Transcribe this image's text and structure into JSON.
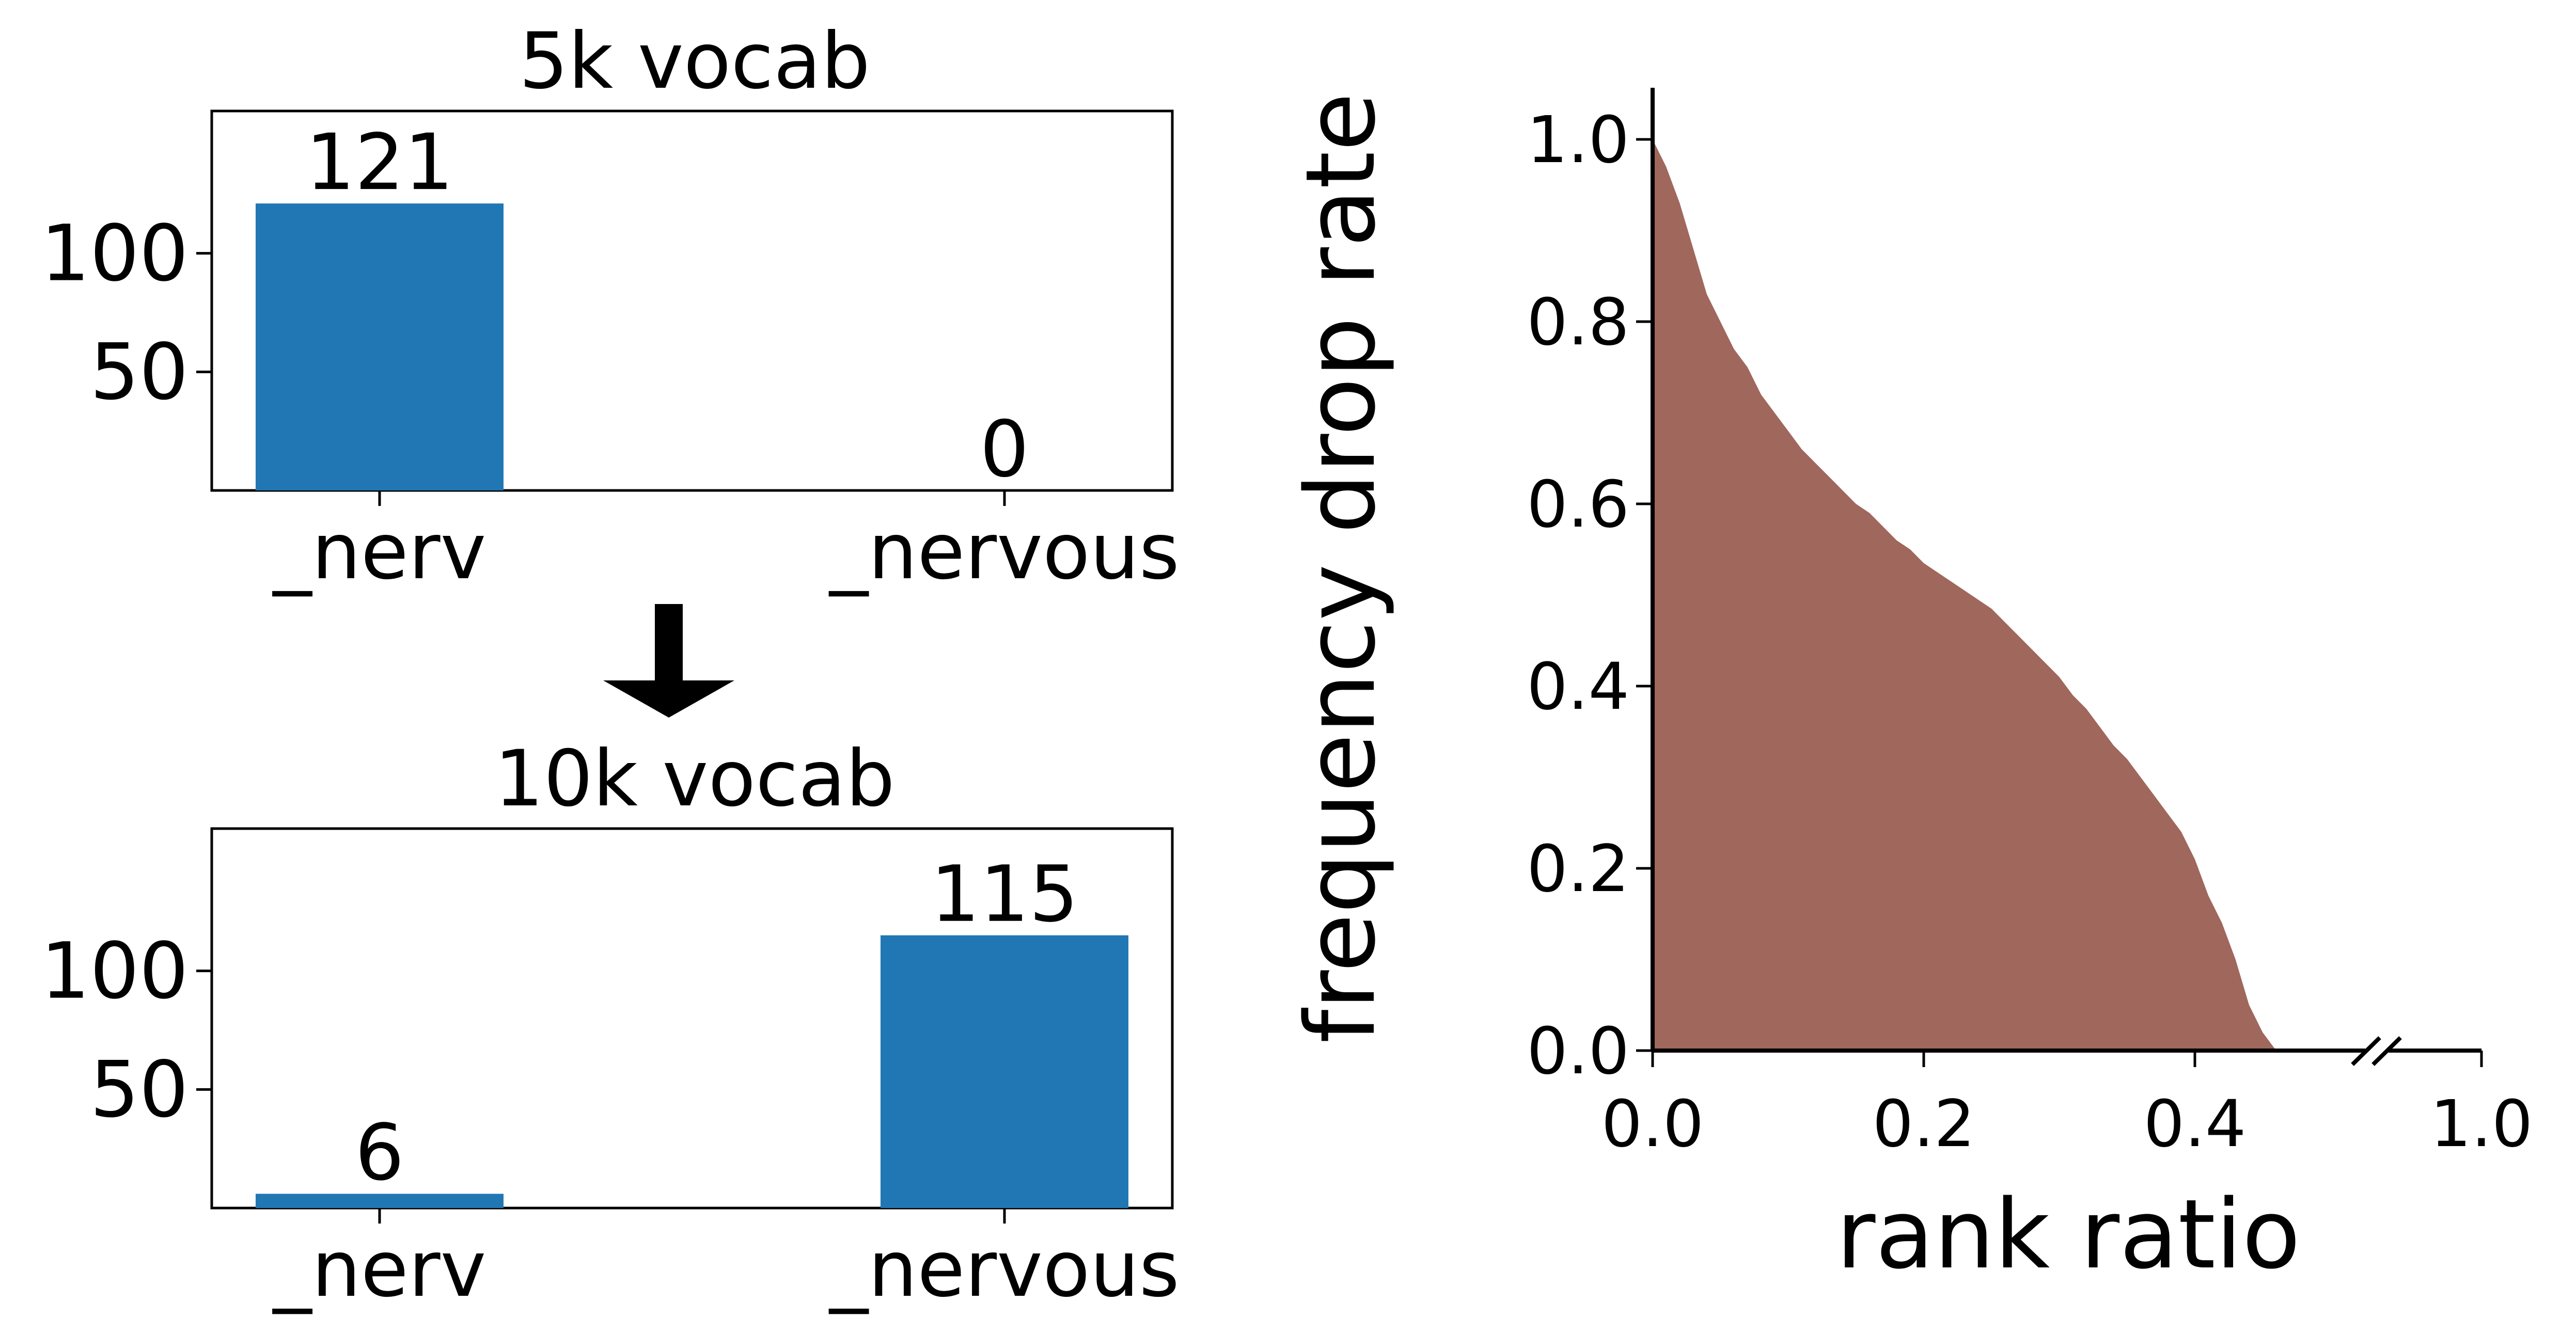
{
  "chart_data": [
    {
      "type": "bar",
      "title": "5k vocab",
      "categories": [
        "_nerv",
        "_nervous"
      ],
      "values": [
        121,
        0
      ],
      "data_labels": [
        "121",
        "0"
      ],
      "yticks": [
        50,
        100
      ],
      "ytick_labels": [
        "50",
        "100"
      ],
      "ylim": [
        0,
        160
      ],
      "color": "#2077b4"
    },
    {
      "type": "bar",
      "title": "10k vocab",
      "categories": [
        "_nerv",
        "_nervous"
      ],
      "values": [
        6,
        115
      ],
      "data_labels": [
        "6",
        "115"
      ],
      "yticks": [
        50,
        100
      ],
      "ytick_labels": [
        "50",
        "100"
      ],
      "ylim": [
        0,
        160
      ],
      "color": "#2077b4"
    },
    {
      "type": "area",
      "xlabel": "rank ratio",
      "ylabel": "frequency drop rate",
      "xticks": [
        0.0,
        0.2,
        0.4,
        1.0
      ],
      "xtick_labels": [
        "0.0",
        "0.2",
        "0.4",
        "1.0"
      ],
      "yticks": [
        0.0,
        0.2,
        0.4,
        0.6,
        0.8,
        1.0
      ],
      "ytick_labels": [
        "0.0",
        "0.2",
        "0.4",
        "0.6",
        "0.8",
        "1.0"
      ],
      "xlim": [
        0.0,
        1.0
      ],
      "ylim": [
        0.0,
        1.0
      ],
      "axis_break": true,
      "color": "#a0675c",
      "x": [
        0.0,
        0.01,
        0.02,
        0.03,
        0.04,
        0.05,
        0.06,
        0.07,
        0.08,
        0.09,
        0.1,
        0.11,
        0.12,
        0.13,
        0.14,
        0.15,
        0.16,
        0.17,
        0.18,
        0.19,
        0.2,
        0.21,
        0.22,
        0.23,
        0.24,
        0.25,
        0.26,
        0.27,
        0.28,
        0.29,
        0.3,
        0.31,
        0.32,
        0.33,
        0.34,
        0.35,
        0.36,
        0.37,
        0.38,
        0.39,
        0.4,
        0.41,
        0.42,
        0.43,
        0.44,
        0.45,
        0.46
      ],
      "y": [
        1.0,
        0.97,
        0.93,
        0.88,
        0.83,
        0.8,
        0.77,
        0.75,
        0.72,
        0.7,
        0.68,
        0.66,
        0.645,
        0.63,
        0.615,
        0.6,
        0.59,
        0.575,
        0.56,
        0.55,
        0.535,
        0.525,
        0.515,
        0.505,
        0.495,
        0.485,
        0.47,
        0.455,
        0.44,
        0.425,
        0.41,
        0.39,
        0.375,
        0.355,
        0.335,
        0.32,
        0.3,
        0.28,
        0.26,
        0.24,
        0.21,
        0.17,
        0.14,
        0.1,
        0.05,
        0.02,
        0.0
      ]
    }
  ]
}
